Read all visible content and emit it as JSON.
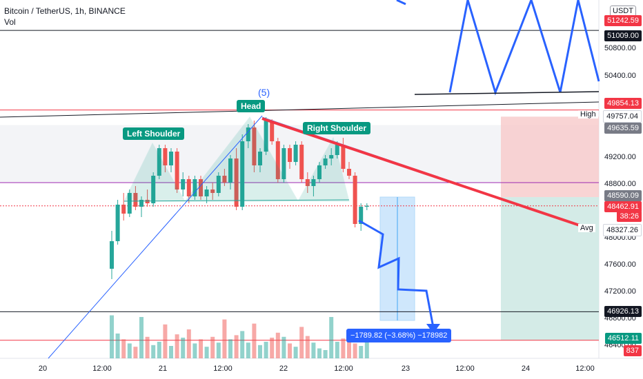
{
  "header": {
    "title": "Bitcoin / TetherUS, 1h, BINANCE",
    "vol_label": "Vol"
  },
  "currency_button": "USDT",
  "y_ticks": [
    "50800.00",
    "50400.00",
    "49200.00",
    "48800.00",
    "48000.00",
    "47600.00",
    "47200.00",
    "46800.00",
    "46400.00"
  ],
  "x_ticks": [
    "20",
    "12:00",
    "21",
    "12:00",
    "22",
    "12:00",
    "23",
    "12:00",
    "24",
    "12:00"
  ],
  "price_tags": [
    {
      "text": "51242.59",
      "color": "#f23645",
      "name": "price-tag-51242"
    },
    {
      "text": "51009.00",
      "color": "#131722",
      "name": "price-tag-51009"
    },
    {
      "text": "49854.13",
      "color": "#f23645",
      "name": "price-tag-49854"
    },
    {
      "text": "49757.04",
      "color": "#ffffff",
      "name": "price-tag-high"
    },
    {
      "text": "49635.59",
      "color": "#787b86",
      "name": "price-tag-49635"
    },
    {
      "text": "48590.09",
      "color": "#787b86",
      "name": "price-tag-48590"
    },
    {
      "text": "48462.91",
      "color": "#f23645",
      "name": "price-tag-last"
    },
    {
      "text": "38:26",
      "color": "#f23645",
      "name": "price-tag-countdown"
    },
    {
      "text": "48327.26",
      "color": "#ffffff",
      "name": "price-tag-avg"
    },
    {
      "text": "46926.13",
      "color": "#131722",
      "name": "price-tag-46926"
    },
    {
      "text": "46512.11",
      "color": "#089981",
      "name": "price-tag-46512"
    },
    {
      "text": "837",
      "color": "#f23645",
      "name": "price-tag-volume"
    }
  ],
  "side_labels": {
    "high": "High",
    "avg": "Avg"
  },
  "annotations": {
    "head": "Head",
    "left_shoulder": "Left Shoulder",
    "right_shoulder": "Right Shoulder",
    "wave": "(5)",
    "measure": "−1789.82 (−3.68%) −178982"
  },
  "colors": {
    "up": "#26a69a",
    "down": "#ef5350",
    "pattern_fill": "#089981",
    "projection": "#2962ff",
    "trendline": "#f23645"
  },
  "chart_data": {
    "type": "candlestick",
    "title": "Bitcoin / TetherUS, 1h, BINANCE",
    "ylim": [
      46300,
      51300
    ],
    "candles": [
      [
        47550,
        48100,
        47400,
        47950
      ],
      [
        47950,
        48550,
        47900,
        48480
      ],
      [
        48480,
        48650,
        48250,
        48350
      ],
      [
        48350,
        48700,
        48300,
        48650
      ],
      [
        48650,
        48750,
        48400,
        48450
      ],
      [
        48450,
        48600,
        48300,
        48550
      ],
      [
        48550,
        48700,
        48450,
        48500
      ],
      [
        48500,
        48950,
        48450,
        48900
      ],
      [
        48900,
        49350,
        48850,
        49300
      ],
      [
        49300,
        49350,
        48950,
        49050
      ],
      [
        49050,
        49300,
        48950,
        49250
      ],
      [
        49250,
        49300,
        48650,
        48700
      ],
      [
        48700,
        48950,
        48600,
        48850
      ],
      [
        48850,
        48900,
        48500,
        48600
      ],
      [
        48600,
        48900,
        48550,
        48850
      ],
      [
        48850,
        48900,
        48550,
        48600
      ],
      [
        48600,
        48750,
        48500,
        48700
      ],
      [
        48700,
        48800,
        48550,
        48650
      ],
      [
        48650,
        48950,
        48600,
        48900
      ],
      [
        48900,
        49000,
        48750,
        48800
      ],
      [
        48800,
        49200,
        48700,
        49150
      ],
      [
        49150,
        49300,
        48400,
        48450
      ],
      [
        48450,
        49500,
        48400,
        49400
      ],
      [
        49400,
        49650,
        49300,
        49600
      ],
      [
        49600,
        49700,
        48950,
        49050
      ],
      [
        49050,
        49300,
        48950,
        49250
      ],
      [
        49250,
        49750,
        49200,
        49700
      ],
      [
        49700,
        49720,
        49350,
        49400
      ],
      [
        49400,
        49450,
        48800,
        48850
      ],
      [
        48850,
        49350,
        48800,
        49300
      ],
      [
        49300,
        49350,
        49000,
        49100
      ],
      [
        49100,
        49400,
        49050,
        49350
      ],
      [
        49350,
        49400,
        48800,
        48850
      ],
      [
        48850,
        48950,
        48650,
        48750
      ],
      [
        48750,
        48900,
        48600,
        48850
      ],
      [
        48850,
        49100,
        48800,
        49050
      ],
      [
        49050,
        49200,
        49000,
        49150
      ],
      [
        49150,
        49300,
        49050,
        49200
      ],
      [
        49200,
        49400,
        49150,
        49350
      ],
      [
        49350,
        49450,
        48950,
        49000
      ],
      [
        49000,
        49100,
        48850,
        48900
      ],
      [
        48900,
        48950,
        48150,
        48200
      ],
      [
        48200,
        48500,
        48100,
        48450
      ],
      [
        48450,
        48500,
        48400,
        48463
      ]
    ],
    "volume_scale_max": 1000
  }
}
